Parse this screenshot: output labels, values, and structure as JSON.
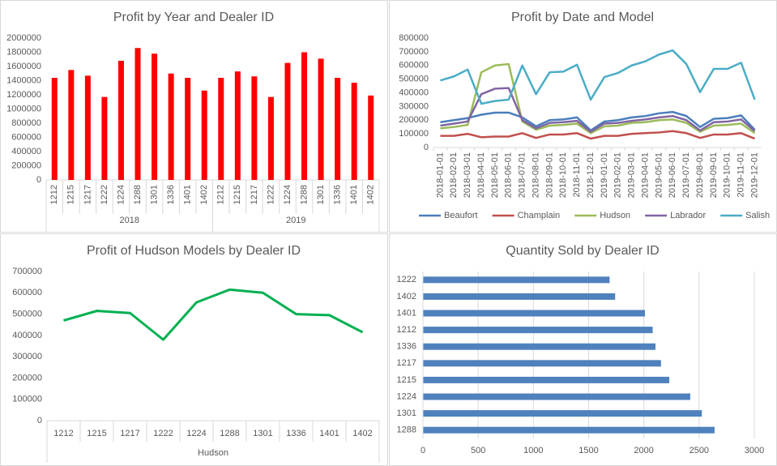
{
  "chart_data": [
    {
      "type": "bar",
      "title": "Profit by Year and Dealer ID",
      "color": "#ff0000",
      "groups": [
        {
          "name": "2018",
          "categories": [
            "1212",
            "1215",
            "1217",
            "1222",
            "1224",
            "1288",
            "1301",
            "1336",
            "1401",
            "1402"
          ],
          "values": [
            1440000,
            1550000,
            1470000,
            1170000,
            1680000,
            1860000,
            1780000,
            1500000,
            1440000,
            1260000
          ]
        },
        {
          "name": "2019",
          "categories": [
            "1212",
            "1215",
            "1217",
            "1222",
            "1224",
            "1288",
            "1301",
            "1336",
            "1401",
            "1402"
          ],
          "values": [
            1440000,
            1530000,
            1460000,
            1170000,
            1650000,
            1800000,
            1710000,
            1440000,
            1370000,
            1190000
          ]
        }
      ],
      "ylim": [
        0,
        2000000
      ],
      "yticks": [
        0,
        200000,
        400000,
        600000,
        800000,
        1000000,
        1200000,
        1400000,
        1600000,
        1800000,
        2000000
      ],
      "grid": false
    },
    {
      "type": "line",
      "title": "Profit by Date and Model",
      "x": [
        "2018-01-01",
        "2018-02-01",
        "2018-03-01",
        "2018-04-01",
        "2018-05-01",
        "2018-06-01",
        "2018-07-01",
        "2018-08-01",
        "2018-09-01",
        "2018-10-01",
        "2018-11-01",
        "2018-12-01",
        "2019-01-01",
        "2019-02-01",
        "2019-03-01",
        "2019-04-01",
        "2019-05-01",
        "2019-06-01",
        "2019-07-01",
        "2019-08-01",
        "2019-09-01",
        "2019-10-01",
        "2019-11-01",
        "2019-12-01"
      ],
      "series": [
        {
          "name": "Beaufort",
          "color": "#4a7ebb",
          "values": [
            185000,
            200000,
            215000,
            240000,
            255000,
            255000,
            220000,
            155000,
            200000,
            205000,
            220000,
            125000,
            190000,
            200000,
            220000,
            230000,
            250000,
            260000,
            230000,
            150000,
            210000,
            215000,
            235000,
            130000
          ]
        },
        {
          "name": "Champlain",
          "color": "#c0504d",
          "values": [
            85000,
            85000,
            100000,
            75000,
            80000,
            80000,
            105000,
            70000,
            95000,
            95000,
            105000,
            65000,
            85000,
            85000,
            100000,
            105000,
            110000,
            120000,
            105000,
            70000,
            95000,
            95000,
            105000,
            65000
          ]
        },
        {
          "name": "Hudson",
          "color": "#9bbb59",
          "values": [
            140000,
            150000,
            165000,
            550000,
            600000,
            610000,
            190000,
            130000,
            160000,
            165000,
            175000,
            105000,
            155000,
            160000,
            180000,
            185000,
            200000,
            205000,
            180000,
            115000,
            160000,
            165000,
            175000,
            105000
          ]
        },
        {
          "name": "Labrador",
          "color": "#8064a2",
          "values": [
            160000,
            175000,
            190000,
            390000,
            430000,
            435000,
            200000,
            140000,
            180000,
            185000,
            195000,
            115000,
            175000,
            180000,
            195000,
            205000,
            220000,
            230000,
            200000,
            125000,
            185000,
            190000,
            205000,
            120000
          ]
        },
        {
          "name": "Salish",
          "color": "#4bacc6",
          "values": [
            490000,
            520000,
            570000,
            320000,
            340000,
            350000,
            600000,
            390000,
            550000,
            555000,
            605000,
            350000,
            515000,
            545000,
            600000,
            630000,
            680000,
            710000,
            610000,
            405000,
            575000,
            575000,
            620000,
            350000
          ]
        }
      ],
      "ylim": [
        0,
        800000
      ],
      "yticks": [
        0,
        100000,
        200000,
        300000,
        400000,
        500000,
        600000,
        700000,
        800000
      ],
      "grid": false,
      "legend": "bottom"
    },
    {
      "type": "line",
      "title": "Profit of Hudson Models by Dealer ID",
      "color": "#00b050",
      "groups": [
        {
          "name": "Hudson",
          "categories": [
            "1212",
            "1215",
            "1217",
            "1222",
            "1224",
            "1288",
            "1301",
            "1336",
            "1401",
            "1402"
          ],
          "values": [
            470000,
            515000,
            505000,
            380000,
            555000,
            615000,
            600000,
            500000,
            495000,
            415000
          ]
        }
      ],
      "ylim": [
        0,
        700000
      ],
      "yticks": [
        0,
        100000,
        200000,
        300000,
        400000,
        500000,
        600000,
        700000
      ],
      "grid": false
    },
    {
      "type": "barh",
      "title": "Quantity Sold by Dealer ID",
      "color": "#4f81bd",
      "categories": [
        "1222",
        "1402",
        "1401",
        "1212",
        "1336",
        "1217",
        "1215",
        "1224",
        "1301",
        "1288"
      ],
      "values": [
        1690,
        1740,
        2010,
        2080,
        2105,
        2155,
        2230,
        2420,
        2525,
        2640
      ],
      "xlim": [
        0,
        3000
      ],
      "xticks": [
        0,
        500,
        1000,
        1500,
        2000,
        2500,
        3000
      ],
      "grid": true
    }
  ]
}
